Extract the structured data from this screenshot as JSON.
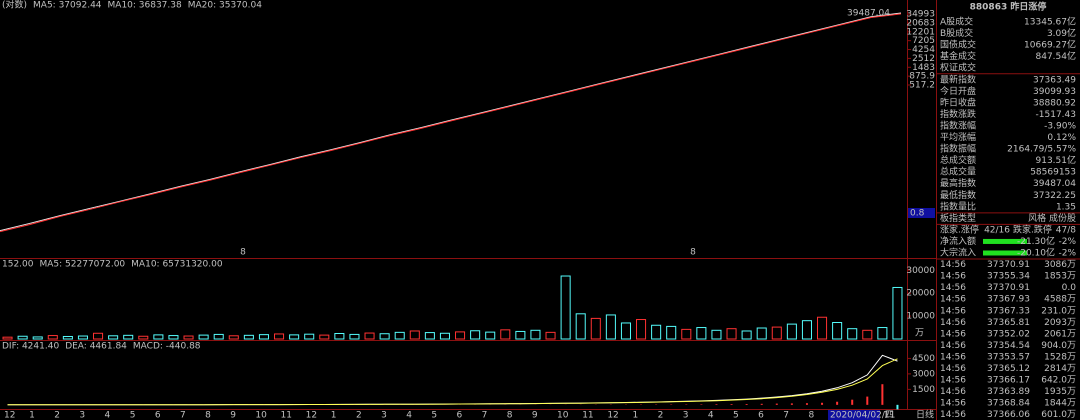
{
  "chart_data": [
    {
      "type": "line",
      "log_scale": true,
      "header": [
        {
          "text": "(对数)",
          "color": "#c0c0c0"
        },
        {
          "text": "MA5: 37092.44",
          "color": "#ffffff"
        },
        {
          "text": "MA10: 36837.38",
          "color": "#ffff54"
        },
        {
          "text": "MA20: 35370.04",
          "color": "#ff54ff"
        }
      ],
      "ylim": [
        0.02,
        60000
      ],
      "yticks": [
        517.2,
        875.9,
        1483,
        2512,
        4254,
        7205,
        12201,
        20683,
        34993
      ],
      "series": [
        {
          "color": "#e8e8e8",
          "values": [
            0.09,
            0.14,
            0.22,
            0.34,
            0.52,
            0.8,
            1.25,
            1.9,
            3.0,
            4.6,
            7.2,
            11,
            17,
            27,
            41,
            64,
            98,
            152,
            236,
            367,
            570,
            884,
            1372,
            2130,
            3300,
            5130,
            7960,
            12350,
            19170,
            29750,
            37363.49
          ]
        },
        {
          "color": "#ff3030",
          "values": [
            0.085,
            0.13,
            0.21,
            0.32,
            0.5,
            0.77,
            1.2,
            1.82,
            2.85,
            4.4,
            6.9,
            10.5,
            16.3,
            25.8,
            39,
            61,
            94,
            146,
            226,
            352,
            548,
            848,
            1318,
            2045,
            3170,
            4930,
            7650,
            11870,
            18420,
            28600,
            35370.04
          ]
        }
      ],
      "annotations": [
        "39487.04"
      ],
      "markers": [
        "8",
        "8"
      ],
      "cursor_label": "0.8"
    },
    {
      "type": "bar",
      "header": [
        {
          "text": "152.00",
          "color": "#c0c0c0"
        },
        {
          "text": "MA5: 52277072.00",
          "color": "#ffffff"
        },
        {
          "text": "MA10: 65731320.00",
          "color": "#ffff54"
        }
      ],
      "ylim": [
        0,
        31000
      ],
      "yticks": [
        10000,
        20000,
        30000
      ],
      "unit": "万",
      "color": "#54fcfc",
      "values": [
        800,
        1200,
        900,
        1500,
        1100,
        1300,
        2500,
        1400,
        1600,
        1200,
        1800,
        1500,
        1300,
        1700,
        2000,
        1400,
        1600,
        1900,
        2200,
        1800,
        2100,
        1700,
        2400,
        2000,
        2600,
        2300,
        2900,
        3500,
        2800,
        2500,
        3100,
        3600,
        3000,
        4000,
        3300,
        3800,
        2900,
        27500,
        11000,
        9000,
        10500,
        7000,
        8500,
        6000,
        5500,
        4200,
        5000,
        3800,
        4500,
        3500,
        4800,
        5200,
        6500,
        8000,
        9500,
        7200,
        4500,
        3800,
        5000,
        22500
      ]
    },
    {
      "type": "macd",
      "header": [
        {
          "text": "DIF: 4241.40",
          "color": "#ffffff"
        },
        {
          "text": "DEA: 4461.84",
          "color": "#ffff54"
        },
        {
          "text": "MACD: -440.88",
          "color": "#ff54ff"
        }
      ],
      "ylim": [
        -500,
        5800
      ],
      "yticks": [
        1500,
        3000,
        4500
      ],
      "series": [
        {
          "color": "#ffffff",
          "values": [
            2,
            3,
            4,
            5,
            6,
            7,
            8,
            9,
            10,
            12,
            13,
            15,
            16,
            18,
            20,
            22,
            24,
            26,
            28,
            30,
            33,
            36,
            40,
            44,
            48,
            52,
            57,
            62,
            68,
            75,
            82,
            90,
            98,
            108,
            118,
            130,
            142,
            155,
            170,
            190,
            210,
            230,
            255,
            280,
            310,
            340,
            380,
            430,
            490,
            560,
            650,
            760,
            900,
            1080,
            1320,
            1650,
            2150,
            2900,
            4800,
            4241.4
          ]
        },
        {
          "color": "#ffff54",
          "values": [
            1,
            2,
            3,
            4,
            5,
            6,
            7,
            8,
            9,
            10,
            11,
            13,
            14,
            16,
            18,
            20,
            22,
            24,
            26,
            28,
            31,
            34,
            37,
            41,
            45,
            49,
            54,
            59,
            64,
            71,
            78,
            86,
            94,
            103,
            113,
            124,
            136,
            149,
            163,
            180,
            198,
            218,
            240,
            264,
            292,
            322,
            358,
            400,
            455,
            520,
            600,
            700,
            830,
            1000,
            1220,
            1500,
            1900,
            2500,
            3800,
            4461.84
          ]
        },
        {
          "color": "#ff3232",
          "bars": true,
          "values": [
            2,
            2,
            2,
            2,
            2,
            2,
            2,
            2,
            2,
            4,
            4,
            4,
            4,
            4,
            4,
            4,
            4,
            4,
            4,
            4,
            4,
            4,
            6,
            6,
            6,
            6,
            6,
            6,
            8,
            8,
            8,
            8,
            8,
            10,
            10,
            12,
            12,
            12,
            14,
            20,
            24,
            24,
            30,
            32,
            36,
            36,
            44,
            60,
            70,
            80,
            100,
            120,
            140,
            160,
            200,
            300,
            500,
            800,
            2000,
            -440.88
          ]
        }
      ]
    }
  ],
  "x_axis": {
    "labels": [
      "12",
      "1",
      "2",
      "3",
      "4",
      "5",
      "6",
      "7",
      "8",
      "9",
      "10",
      "11",
      "12",
      "1",
      "2",
      "3",
      "4",
      "5",
      "6",
      "7",
      "8",
      "9",
      "10",
      "11",
      "12",
      "1",
      "2",
      "3",
      "4",
      "5",
      "6",
      "7",
      "8",
      "9",
      "10",
      "11"
    ],
    "date": "2020/04/02/四",
    "period": "日线"
  },
  "panel": {
    "title": "880863 昨日涨停",
    "stats": [
      {
        "label": "A股成交",
        "value": "13345.67亿",
        "color": "#ffff54"
      },
      {
        "label": "B股成交",
        "value": "3.09亿",
        "color": "#ffff54"
      },
      {
        "label": "国债成交",
        "value": "10669.27亿",
        "color": "#ffff54"
      },
      {
        "label": "基金成交",
        "value": "847.54亿",
        "color": "#ffff54"
      },
      {
        "label": "权证成交"
      },
      {
        "label": "最新指数",
        "value": "37363.49",
        "color": "#54ff54"
      },
      {
        "label": "今日开盘",
        "value": "39099.93",
        "color": "#ff5454"
      },
      {
        "label": "昨日收盘",
        "value": "38880.92",
        "color": "#ffffff"
      },
      {
        "label": "指数涨跌",
        "value": "-1517.43",
        "color": "#54ff54"
      },
      {
        "label": "指数涨幅",
        "value": "-3.90%",
        "color": "#54ff54"
      },
      {
        "label": "平均涨幅",
        "value": "0.12%",
        "color": "#ff5454"
      },
      {
        "label": "指数振幅",
        "value": "2164.79/5.57%",
        "color": "#ffffff"
      },
      {
        "label": "总成交额",
        "value": "913.51亿",
        "color": "#ffff54"
      },
      {
        "label": "总成交量",
        "value": "58569153",
        "color": "#ffff54"
      },
      {
        "label": "最高指数",
        "value": "39487.04",
        "color": "#ff5454"
      },
      {
        "label": "最低指数",
        "value": "37322.25",
        "color": "#54ff54"
      },
      {
        "label": "指数量比",
        "value": "1.35",
        "color": "#ff5454"
      }
    ],
    "board": {
      "label": "板指类型",
      "value": "风格 成份股"
    },
    "breadth": {
      "up_label": "涨家.涨停",
      "up": "42/16",
      "down_label": "跌家.跌停",
      "down": "47/8"
    },
    "flows": [
      {
        "label": "净流入额",
        "value": "-21.30亿",
        "pct": "-2%"
      },
      {
        "label": "大宗流入",
        "value": "-20.10亿",
        "pct": "-2%"
      }
    ],
    "ticks": [
      [
        "14:56",
        "37370.91",
        "3086万"
      ],
      [
        "14:56",
        "37355.34",
        "1853万"
      ],
      [
        "14:56",
        "37370.91",
        "0.0"
      ],
      [
        "14:56",
        "37367.93",
        "4588万"
      ],
      [
        "14:56",
        "37367.33",
        "231.0万"
      ],
      [
        "14:56",
        "37365.81",
        "2093万"
      ],
      [
        "14:56",
        "37352.02",
        "2061万"
      ],
      [
        "14:56",
        "37354.54",
        "904.0万"
      ],
      [
        "14:56",
        "37353.57",
        "1528万"
      ],
      [
        "14:56",
        "37365.12",
        "2814万"
      ],
      [
        "14:56",
        "37366.17",
        "642.0万"
      ],
      [
        "14:56",
        "37363.89",
        "1935万"
      ],
      [
        "14:56",
        "37368.84",
        "1844万"
      ],
      [
        "14:56",
        "37366.06",
        "601.0万"
      ]
    ]
  }
}
